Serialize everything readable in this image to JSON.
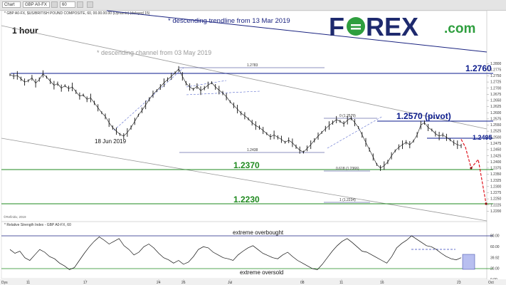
{
  "toolbar": {
    "window_label": "Chart",
    "symbol_field": "GBP A0-FX",
    "interval_field": "60"
  },
  "logo": {
    "text_fo": "F",
    "text_rex": "REX",
    "text_com": ".com",
    "brand_color": "#1e2a6e",
    "accent_color": "#2e9e3e"
  },
  "colors": {
    "level_blue": "#0a1a8c",
    "level_green": "#1f8a1f",
    "projection_red": "#e0141e",
    "channel_grey": "#8a8a8a"
  },
  "chart_data": [
    {
      "type": "line",
      "symbol_line": "* GBP A0-FX, $US/BRITISH POUND COMPOSITE, 60, 00.00.00.00 (Dynamic) (delayed 15)",
      "timeframe": "1 hour",
      "x_ticks": [
        "11",
        "17",
        "24",
        "26",
        "Jul",
        "08",
        "11",
        "16",
        "23"
      ],
      "y_ticks": [
        "1.2800",
        "1.2775",
        "1.2750",
        "1.2725",
        "1.2700",
        "1.2675",
        "1.2650",
        "1.2625",
        "1.2600",
        "1.2575",
        "1.2550",
        "1.2525",
        "1.2500",
        "1.2475",
        "1.2450",
        "1.2425",
        "1.2400",
        "1.2375",
        "1.2350",
        "1.2325",
        "1.2300",
        "1.2275",
        "1.2250",
        "1.2225",
        "1.2200"
      ],
      "ylim": [
        1.219,
        1.285
      ],
      "price_path": [
        1.2755,
        1.2748,
        1.2752,
        1.2738,
        1.2725,
        1.273,
        1.2742,
        1.272,
        1.2735,
        1.2758,
        1.2745,
        1.2728,
        1.2712,
        1.2718,
        1.27,
        1.271,
        1.2698,
        1.2705,
        1.2685,
        1.2668,
        1.2672,
        1.2655,
        1.266,
        1.264,
        1.262,
        1.26,
        1.2585,
        1.256,
        1.254,
        1.2525,
        1.2512,
        1.2505,
        1.252,
        1.254,
        1.2565,
        1.259,
        1.261,
        1.2632,
        1.2655,
        1.2675,
        1.269,
        1.2705,
        1.2722,
        1.2735,
        1.2748,
        1.2762,
        1.2778,
        1.2748,
        1.272,
        1.2705,
        1.2695,
        1.2708,
        1.269,
        1.27,
        1.2712,
        1.2722,
        1.2705,
        1.2692,
        1.268,
        1.2665,
        1.2645,
        1.263,
        1.2615,
        1.2598,
        1.2588,
        1.2575,
        1.256,
        1.2548,
        1.254,
        1.2528,
        1.2515,
        1.2502,
        1.251,
        1.25,
        1.2492,
        1.248,
        1.2488,
        1.2478,
        1.2462,
        1.2448,
        1.244,
        1.2455,
        1.247,
        1.2488,
        1.2505,
        1.252,
        1.2535,
        1.2548,
        1.256,
        1.2572,
        1.2565,
        1.2555,
        1.257,
        1.2578,
        1.256,
        1.254,
        1.251,
        1.248,
        1.245,
        1.242,
        1.239,
        1.2375,
        1.2385,
        1.24,
        1.2425,
        1.2445,
        1.246,
        1.247,
        1.248,
        1.247,
        1.2485,
        1.251,
        1.255,
        1.256,
        1.254,
        1.253,
        1.2515,
        1.2505,
        1.251,
        1.25,
        1.249,
        1.2478,
        1.247,
        1.2465
      ],
      "projection_path": [
        1.2492,
        1.246,
        1.2375,
        1.241,
        1.223
      ],
      "levels": [
        {
          "label": "1.2760",
          "value": 1.276,
          "color": "blue"
        },
        {
          "label": "1.2570 (pivot)",
          "value": 1.257,
          "color": "blue"
        },
        {
          "label": "1.2495",
          "value": 1.2495,
          "color": "blue"
        },
        {
          "label": "1.2370",
          "value": 1.237,
          "color": "green"
        },
        {
          "label": "1.2230",
          "value": 1.223,
          "color": "green"
        }
      ],
      "fib_labels": [
        {
          "label": "1.2783",
          "value": 1.2783
        },
        {
          "label": "0 (1.2579)",
          "value": 1.2579
        },
        {
          "label": "1.2438",
          "value": 1.2438
        },
        {
          "label": "0.618 (1.2366)",
          "value": 1.2366
        },
        {
          "label": "1 (1.2234)",
          "value": 1.2234
        }
      ],
      "annotations": [
        "* descending trendline from 13 Mar 2019",
        "* descending channel from 03 May 2019",
        "18 Jun 2019"
      ],
      "copyright": "©Refinitiv, 2019"
    },
    {
      "type": "line",
      "title": "* Relative Strength Index - GBP A0-FX, 60",
      "y_ticks": [
        "80.00",
        "60.00",
        "39.92",
        "20.00",
        "0.00"
      ],
      "ylim": [
        0,
        100
      ],
      "levels": [
        {
          "label": "extreme overbought",
          "value": 80
        },
        {
          "label": "extreme oversold",
          "value": 20
        }
      ],
      "rsi_path": [
        55,
        48,
        52,
        40,
        35,
        45,
        55,
        50,
        42,
        38,
        30,
        25,
        18,
        22,
        35,
        48,
        60,
        70,
        78,
        72,
        65,
        70,
        75,
        62,
        55,
        45,
        50,
        60,
        65,
        58,
        48,
        40,
        36,
        30,
        35,
        28,
        32,
        42,
        55,
        60,
        58,
        50,
        45,
        40,
        38,
        35,
        45,
        52,
        58,
        62,
        55,
        48,
        44,
        40,
        38,
        45,
        50,
        42,
        35,
        30,
        25,
        20,
        18,
        28,
        40,
        52,
        62,
        70,
        75,
        68,
        60,
        52,
        50,
        45,
        40,
        35,
        30,
        42,
        58,
        66,
        72,
        80,
        74,
        68,
        62,
        60,
        55,
        48,
        42,
        38,
        36,
        40
      ]
    }
  ],
  "x_axis": {
    "left_label": "Dys",
    "right_label": "Oct"
  }
}
